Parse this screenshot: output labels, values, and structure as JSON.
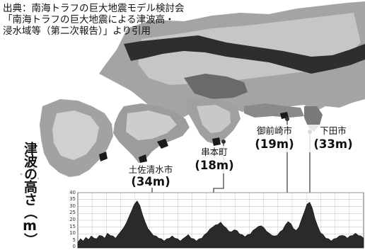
{
  "source": {
    "line1": "出典：南海トラフの巨大地震モデル検討会",
    "line2": "「南海トラフの巨大地震による津波高・",
    "line3": "浸水域等（第二次報告）」より引用"
  },
  "chart_data": {
    "type": "area",
    "ylabel": "津波の高さ（m）",
    "ylim": [
      0,
      40
    ],
    "yticks": [
      "40",
      "35",
      "30",
      "25",
      "20",
      "15",
      "10",
      "5",
      "0"
    ],
    "grid": true,
    "annotations": [
      {
        "city": "土佐清水市",
        "height_label": "(34m)",
        "value_m": 34
      },
      {
        "city": "串本町",
        "height_label": "(18m)",
        "value_m": 18
      },
      {
        "city": "御前崎市",
        "height_label": "(19m)",
        "value_m": 19
      },
      {
        "city": "下田市",
        "height_label": "(33m)",
        "value_m": 33
      }
    ],
    "profile_m": [
      4,
      6,
      5,
      7,
      6,
      8,
      7,
      6,
      9,
      8,
      7,
      10,
      9,
      8,
      7,
      9,
      12,
      14,
      18,
      22,
      27,
      31,
      34,
      30,
      24,
      18,
      14,
      11,
      9,
      8,
      7,
      6,
      5,
      6,
      7,
      8,
      7,
      6,
      5,
      6,
      8,
      9,
      7,
      6,
      5,
      6,
      7,
      9,
      11,
      13,
      15,
      16,
      17,
      18,
      16,
      14,
      12,
      11,
      13,
      12,
      10,
      9,
      8,
      9,
      10,
      12,
      14,
      15,
      16,
      14,
      12,
      10,
      9,
      8,
      9,
      11,
      13,
      16,
      19,
      17,
      14,
      12,
      15,
      20,
      26,
      31,
      33,
      28,
      21,
      15,
      11,
      9,
      7,
      6,
      5,
      6,
      7,
      8,
      9,
      8,
      7,
      8,
      9,
      10,
      9,
      8,
      7
    ]
  },
  "colors": {
    "sea": "#ffffff",
    "land_light": "#cfcfcf",
    "land_mid": "#9a9a9a",
    "land_dark": "#5c5c5c",
    "inundation": "#111111",
    "chart_fill": "#2a2a2a",
    "grid": "#bbbbbb"
  }
}
